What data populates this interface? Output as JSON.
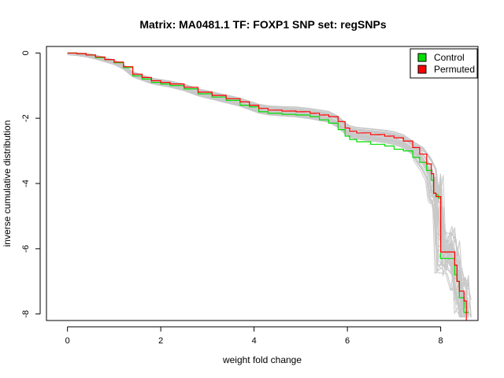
{
  "chart_data": {
    "type": "line",
    "title": "Matrix: MA0481.1 TF: FOXP1 SNP set: regSNPs",
    "xlabel": "weight fold change",
    "ylabel": "inverse cumulative distribution",
    "xlim": [
      -0.45,
      8.8
    ],
    "ylim": [
      -8.2,
      0.2
    ],
    "x_ticks": [
      0,
      2,
      4,
      6,
      8
    ],
    "y_ticks": [
      0,
      -2,
      -4,
      -6,
      -8
    ],
    "legend": {
      "position": "top-right",
      "entries": [
        {
          "label": "Control",
          "color": "#00dd00"
        },
        {
          "label": "Permuted",
          "color": "#ff0000"
        }
      ]
    },
    "colors": {
      "control": "#00dd00",
      "permuted": "#ff0000",
      "background_runs": "#c8c8c8"
    },
    "series": [
      {
        "name": "Control",
        "color": "#00dd00",
        "x": [
          0,
          0.2,
          0.4,
          0.6,
          0.8,
          1.0,
          1.2,
          1.4,
          1.6,
          1.8,
          2.0,
          2.2,
          2.5,
          2.8,
          3.1,
          3.4,
          3.7,
          3.9,
          4.1,
          4.3,
          4.6,
          4.9,
          5.2,
          5.4,
          5.6,
          5.8,
          5.95,
          6.05,
          6.2,
          6.5,
          6.8,
          7.0,
          7.2,
          7.4,
          7.55,
          7.7,
          7.8,
          7.85,
          7.9,
          7.95,
          8.0,
          8.2,
          8.3,
          8.35,
          8.4,
          8.5,
          8.6
        ],
        "y": [
          0,
          -0.02,
          -0.06,
          -0.14,
          -0.2,
          -0.3,
          -0.45,
          -0.7,
          -0.8,
          -0.9,
          -0.95,
          -1.0,
          -1.1,
          -1.25,
          -1.35,
          -1.45,
          -1.6,
          -1.65,
          -1.8,
          -1.85,
          -1.88,
          -1.9,
          -1.95,
          -2.05,
          -2.15,
          -2.35,
          -2.55,
          -2.65,
          -2.72,
          -2.8,
          -2.85,
          -2.95,
          -3.0,
          -3.2,
          -3.35,
          -3.6,
          -3.9,
          -4.3,
          -4.35,
          -4.45,
          -6.3,
          -6.3,
          -6.8,
          -7.0,
          -7.5,
          -7.95,
          -7.95
        ]
      },
      {
        "name": "Permuted",
        "color": "#ff0000",
        "x": [
          0,
          0.2,
          0.4,
          0.6,
          0.8,
          1.0,
          1.2,
          1.4,
          1.6,
          1.8,
          2.0,
          2.2,
          2.5,
          2.8,
          3.1,
          3.4,
          3.7,
          3.9,
          4.1,
          4.3,
          4.6,
          4.9,
          5.2,
          5.4,
          5.6,
          5.8,
          5.95,
          6.05,
          6.2,
          6.5,
          6.8,
          7.0,
          7.2,
          7.4,
          7.55,
          7.7,
          7.8,
          7.85,
          7.9,
          7.95,
          8.0,
          8.2,
          8.3,
          8.35,
          8.4,
          8.5,
          8.55
        ],
        "y": [
          0,
          -0.02,
          -0.06,
          -0.12,
          -0.2,
          -0.28,
          -0.42,
          -0.65,
          -0.75,
          -0.85,
          -0.9,
          -0.95,
          -1.05,
          -1.2,
          -1.3,
          -1.4,
          -1.5,
          -1.6,
          -1.7,
          -1.75,
          -1.78,
          -1.8,
          -1.85,
          -1.9,
          -1.95,
          -2.1,
          -2.3,
          -2.4,
          -2.45,
          -2.5,
          -2.55,
          -2.6,
          -2.7,
          -2.9,
          -3.1,
          -3.4,
          -3.7,
          -4.3,
          -4.4,
          -4.4,
          -6.1,
          -6.1,
          -6.5,
          -7.0,
          -7.3,
          -7.6,
          -8.2
        ]
      }
    ]
  }
}
